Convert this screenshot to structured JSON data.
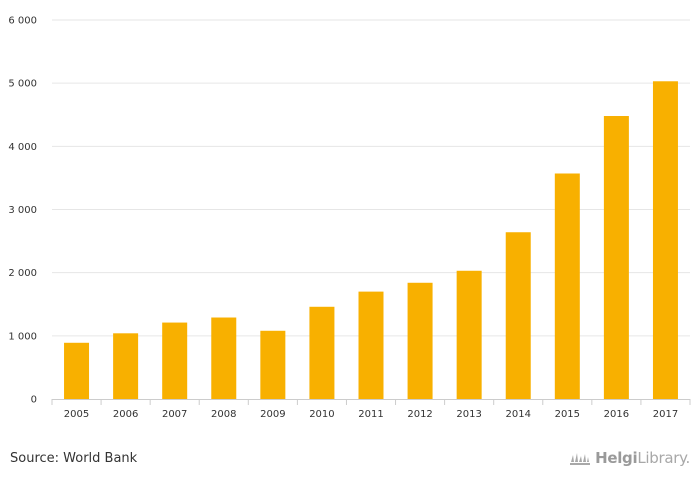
{
  "chart_data": {
    "type": "bar",
    "categories": [
      "2005",
      "2006",
      "2007",
      "2008",
      "2009",
      "2010",
      "2011",
      "2012",
      "2013",
      "2014",
      "2015",
      "2016",
      "2017"
    ],
    "values": [
      890,
      1040,
      1210,
      1290,
      1080,
      1460,
      1700,
      1840,
      2030,
      2640,
      3570,
      4480,
      5030
    ],
    "title": "",
    "xlabel": "",
    "ylabel": "",
    "ylim": [
      0,
      6000
    ],
    "yticks": [
      0,
      1000,
      2000,
      3000,
      4000,
      5000,
      6000
    ],
    "ytick_labels": [
      "0",
      "1 000",
      "2 000",
      "3 000",
      "4 000",
      "5 000",
      "6 000"
    ],
    "grid": true,
    "legend": "none",
    "bar_color": "#f8b000"
  },
  "footer": {
    "source": "Source: World Bank",
    "brand_bold": "Helgi",
    "brand_light": "Library."
  }
}
